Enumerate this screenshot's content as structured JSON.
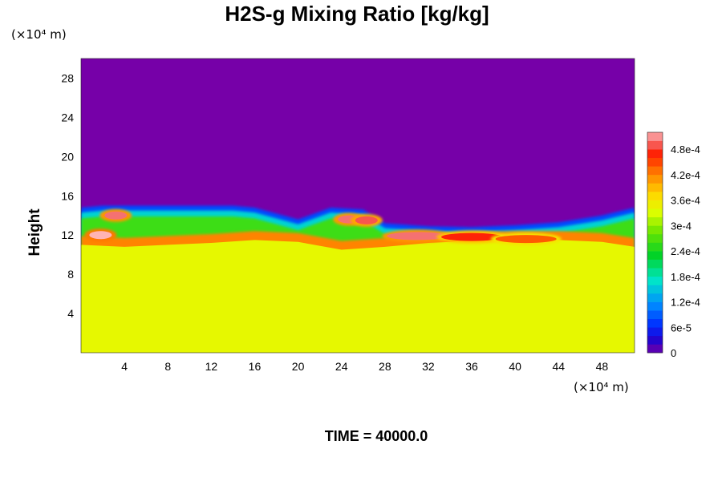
{
  "chart_data": {
    "type": "heatmap",
    "title": "H2S-g Mixing Ratio [kg/kg]",
    "ylabel": "Height",
    "y_unit": "(×10⁴ m)",
    "x_unit": "(×10⁴ m)",
    "xlabel": "",
    "xlim": [
      0,
      51
    ],
    "ylim": [
      0,
      30
    ],
    "x_ticks": [
      4,
      8,
      12,
      16,
      20,
      24,
      28,
      32,
      36,
      40,
      44,
      48
    ],
    "y_ticks": [
      4,
      8,
      12,
      16,
      20,
      24,
      28
    ],
    "colorbar": {
      "min": 0,
      "max": 0.00052,
      "tick_values": [
        0,
        6e-05,
        0.00012,
        0.00018,
        0.00024,
        0.0003,
        0.00036,
        0.00042,
        0.00048
      ],
      "tick_labels": [
        "0",
        "6e-5",
        "1.2e-4",
        "1.8e-4",
        "2.4e-4",
        "3e-4",
        "3.6e-4",
        "4.2e-4",
        "4.8e-4"
      ]
    },
    "field_description": {
      "lower_layer_value": 0.00034,
      "upper_layer_value": 0,
      "layer_top_height": [
        [
          0,
          11.0
        ],
        [
          4,
          10.8
        ],
        [
          8,
          11.0
        ],
        [
          12,
          11.2
        ],
        [
          16,
          11.5
        ],
        [
          20,
          11.3
        ],
        [
          24,
          10.5
        ],
        [
          28,
          10.8
        ],
        [
          32,
          11.2
        ],
        [
          36,
          11.4
        ],
        [
          40,
          11.5
        ],
        [
          44,
          11.5
        ],
        [
          48,
          11.3
        ],
        [
          51,
          10.8
        ]
      ],
      "mixing_zone_top_height": [
        [
          0,
          14.8
        ],
        [
          2,
          15.0
        ],
        [
          8,
          15.0
        ],
        [
          14,
          15.0
        ],
        [
          16,
          14.8
        ],
        [
          20,
          13.6
        ],
        [
          23,
          14.8
        ],
        [
          26,
          14.6
        ],
        [
          28,
          13.2
        ],
        [
          32,
          12.9
        ],
        [
          36,
          12.8
        ],
        [
          40,
          13.0
        ],
        [
          44,
          13.3
        ],
        [
          48,
          14.0
        ],
        [
          51,
          14.8
        ]
      ],
      "hot_spots": [
        {
          "x": 3.2,
          "y": 14.0,
          "value": 0.0005
        },
        {
          "x": 1.8,
          "y": 12.0,
          "value": 0.00052
        },
        {
          "x": 24.7,
          "y": 13.6,
          "value": 0.0005
        },
        {
          "x": 26.3,
          "y": 13.5,
          "value": 0.00049
        },
        {
          "x": 31.0,
          "y": 11.9,
          "value": 0.0005
        },
        {
          "x": 36.0,
          "y": 11.8,
          "value": 0.00047
        },
        {
          "x": 41.0,
          "y": 11.6,
          "value": 0.00044
        }
      ]
    }
  },
  "footer": {
    "time_label": "TIME = 40000.0"
  }
}
